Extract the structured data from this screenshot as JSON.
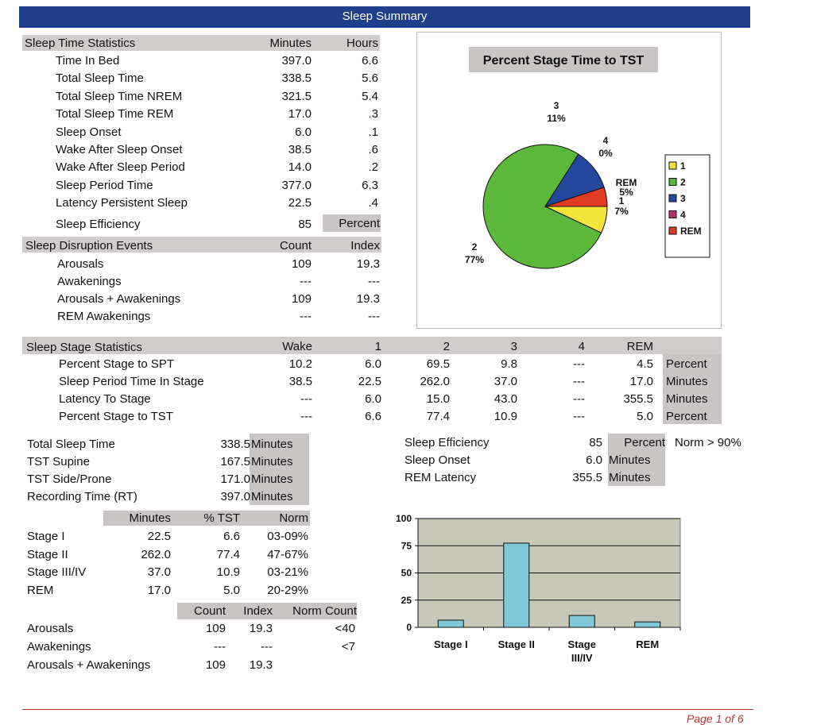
{
  "header": {
    "title": "Sleep Summary"
  },
  "sleep_time_stats": {
    "title": "Sleep Time Statistics",
    "col1": "Minutes",
    "col2": "Hours",
    "rows": [
      {
        "label": "Time In Bed",
        "minutes": "397.0",
        "hours": "6.6"
      },
      {
        "label": "Total Sleep Time",
        "minutes": "338.5",
        "hours": "5.6"
      },
      {
        "label": "Total Sleep Time NREM",
        "minutes": "321.5",
        "hours": "5.4"
      },
      {
        "label": "Total Sleep Time REM",
        "minutes": "17.0",
        "hours": ".3"
      },
      {
        "label": "Sleep Onset",
        "minutes": "6.0",
        "hours": ".1"
      },
      {
        "label": "Wake After Sleep Onset",
        "minutes": "38.5",
        "hours": ".6"
      },
      {
        "label": "Wake After Sleep Period",
        "minutes": "14.0",
        "hours": ".2"
      },
      {
        "label": "Sleep Period Time",
        "minutes": "377.0",
        "hours": "6.3"
      },
      {
        "label": "Latency Persistent Sleep",
        "minutes": "22.5",
        "hours": ".4"
      }
    ],
    "efficiency": {
      "label": "Sleep Efficiency",
      "value": "85",
      "unit": "Percent"
    }
  },
  "disruption": {
    "title": "Sleep Disruption Events",
    "col1": "Count",
    "col2": "Index",
    "rows": [
      {
        "label": "Arousals",
        "count": "109",
        "index": "19.3"
      },
      {
        "label": "Awakenings",
        "count": "---",
        "index": "---"
      },
      {
        "label": "Arousals + Awakenings",
        "count": "109",
        "index": "19.3"
      },
      {
        "label": "REM Awakenings",
        "count": "---",
        "index": "---"
      }
    ]
  },
  "stage_stats": {
    "title": "Sleep Stage Statistics",
    "cols": [
      "Wake",
      "1",
      "2",
      "3",
      "4",
      "REM"
    ],
    "rows": [
      {
        "label": "Percent Stage to SPT",
        "values": [
          "10.2",
          "6.0",
          "69.5",
          "9.8",
          "---",
          "4.5"
        ],
        "unit": "Percent"
      },
      {
        "label": "Sleep Period Time In Stage",
        "values": [
          "38.5",
          "22.5",
          "262.0",
          "37.0",
          "---",
          "17.0"
        ],
        "unit": "Minutes"
      },
      {
        "label": "Latency To Stage",
        "values": [
          "---",
          "6.0",
          "15.0",
          "43.0",
          "---",
          "355.5"
        ],
        "unit": "Minutes"
      },
      {
        "label": "Percent Stage to TST",
        "values": [
          "---",
          "6.6",
          "77.4",
          "10.9",
          "---",
          "5.0"
        ],
        "unit": "Percent"
      }
    ]
  },
  "summary_left": [
    {
      "label": "Total Sleep Time",
      "value": "338.5",
      "unit": "Minutes"
    },
    {
      "label": "TST Supine",
      "value": "167.5",
      "unit": "Minutes"
    },
    {
      "label": "TST Side/Prone",
      "value": "171.0",
      "unit": "Minutes"
    },
    {
      "label": "Recording Time (RT)",
      "value": "397.0",
      "unit": "Minutes"
    }
  ],
  "summary_right": [
    {
      "label": "Sleep Efficiency",
      "value": "85",
      "unit": "Percent",
      "note": "Norm > 90%"
    },
    {
      "label": "Sleep Onset",
      "value": "6.0",
      "unit": "Minutes",
      "note": ""
    },
    {
      "label": "REM Latency",
      "value": "355.5",
      "unit": "Minutes",
      "note": ""
    }
  ],
  "stage_table": {
    "cols": [
      "Minutes",
      "% TST",
      "Norm"
    ],
    "rows": [
      {
        "label": "Stage I",
        "minutes": "22.5",
        "tst": "6.6",
        "norm": "03-09%"
      },
      {
        "label": "Stage II",
        "minutes": "262.0",
        "tst": "77.4",
        "norm": "47-67%"
      },
      {
        "label": "Stage III/IV",
        "minutes": "37.0",
        "tst": "10.9",
        "norm": "03-21%"
      },
      {
        "label": "REM",
        "minutes": "17.0",
        "tst": "5.0",
        "norm": "20-29%"
      }
    ]
  },
  "events_table": {
    "cols": [
      "Count",
      "Index",
      "Norm Count"
    ],
    "rows": [
      {
        "label": "Arousals",
        "count": "109",
        "index": "19.3",
        "norm": "<40"
      },
      {
        "label": "Awakenings",
        "count": "---",
        "index": "---",
        "norm": "<7"
      },
      {
        "label": "Arousals + Awakenings",
        "count": "109",
        "index": "19.3",
        "norm": ""
      }
    ]
  },
  "footer": {
    "page": "Page 1 of 6"
  },
  "chart_data": [
    {
      "type": "pie",
      "title": "Percent Stage Time to TST",
      "slices": [
        {
          "label": "1",
          "value": 7,
          "display": "7%",
          "color": "#f2e43a"
        },
        {
          "label": "2",
          "value": 77,
          "display": "77%",
          "color": "#5cb83a"
        },
        {
          "label": "3",
          "value": 11,
          "display": "11%",
          "color": "#24479e"
        },
        {
          "label": "4",
          "value": 0,
          "display": "0%",
          "color": "#b8306e"
        },
        {
          "label": "REM",
          "value": 5,
          "display": "5%",
          "color": "#e03a22"
        }
      ],
      "legend": [
        "1",
        "2",
        "3",
        "4",
        "REM"
      ],
      "legend_position": "right"
    },
    {
      "type": "bar",
      "categories": [
        "Stage I",
        "Stage II",
        "Stage III/IV",
        "REM"
      ],
      "category_lines": [
        [
          "Stage I"
        ],
        [
          "Stage II"
        ],
        [
          "Stage",
          "III/IV"
        ],
        [
          "REM"
        ]
      ],
      "values": [
        6.6,
        77.4,
        10.9,
        5.0
      ],
      "ylim": [
        0,
        100
      ],
      "yticks": [
        "0",
        "25",
        "50",
        "75",
        "100"
      ],
      "bar_color": "#7ec8d8",
      "plot_bg": "#c8c8b8"
    }
  ]
}
